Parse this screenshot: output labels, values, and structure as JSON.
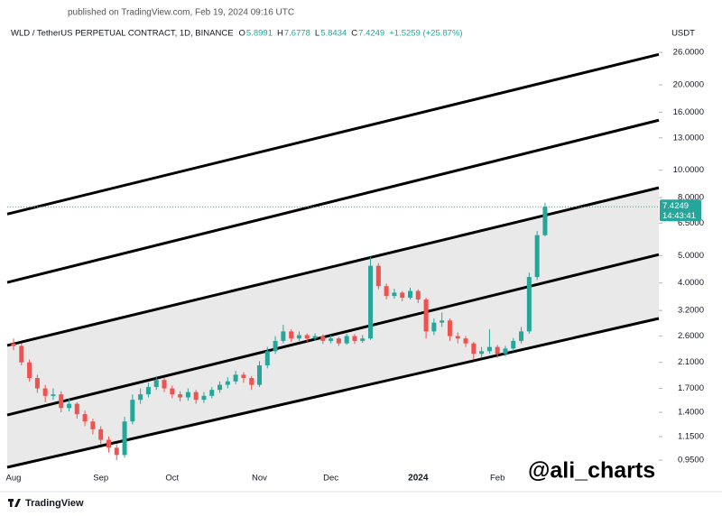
{
  "published": "published on TradingView.com, Feb 19, 2024 09:16 UTC",
  "brand": "TradingView",
  "watermark": "@ali_charts",
  "chart_data": {
    "type": "candlestick",
    "title": "WLD / TetherUS PERPETUAL CONTRACT, 1D, BINANCE",
    "ohlc_legend": [
      {
        "label": "O",
        "value": 5.8991
      },
      {
        "label": "H",
        "value": 7.6778
      },
      {
        "label": "L",
        "value": 5.8434
      },
      {
        "label": "C",
        "value": 7.4249
      }
    ],
    "change": "+1.5259 (+25.87%)",
    "y_axis_label": "USDT",
    "log_scale": true,
    "up_color": "#26a69a",
    "down_color": "#ef5350",
    "categories": [
      "Aug",
      null,
      null,
      null,
      null,
      null,
      null,
      null,
      null,
      null,
      null,
      "Sep",
      null,
      null,
      null,
      null,
      null,
      null,
      null,
      null,
      "Oct",
      null,
      null,
      null,
      null,
      null,
      null,
      null,
      null,
      null,
      null,
      "Nov",
      null,
      null,
      null,
      null,
      null,
      null,
      null,
      null,
      "Dec",
      null,
      null,
      null,
      null,
      null,
      null,
      null,
      null,
      null,
      null,
      "2024",
      null,
      null,
      null,
      null,
      null,
      null,
      null,
      null,
      null,
      "Feb",
      null,
      null,
      null,
      null,
      null,
      null
    ],
    "open": [
      2.45,
      2.4,
      2.1,
      1.85,
      1.7,
      1.6,
      1.62,
      1.45,
      1.5,
      1.38,
      1.3,
      1.22,
      1.12,
      1.05,
      0.99,
      1.3,
      1.55,
      1.62,
      1.72,
      1.82,
      1.7,
      1.62,
      1.58,
      1.65,
      1.55,
      1.6,
      1.68,
      1.75,
      1.8,
      1.9,
      1.85,
      1.75,
      2.05,
      2.3,
      2.5,
      2.7,
      2.55,
      2.62,
      2.55,
      2.6,
      2.5,
      2.55,
      2.45,
      2.6,
      2.5,
      2.55,
      4.6,
      3.9,
      3.6,
      3.7,
      3.55,
      3.75,
      3.5,
      2.7,
      2.9,
      2.95,
      2.6,
      2.55,
      2.45,
      2.25,
      2.3,
      2.38,
      2.25,
      2.35,
      2.5,
      2.7,
      4.2,
      5.8991
    ],
    "high": [
      2.55,
      2.45,
      2.15,
      1.9,
      1.75,
      1.7,
      1.66,
      1.56,
      1.52,
      1.42,
      1.33,
      1.25,
      1.15,
      1.08,
      1.35,
      1.62,
      1.7,
      1.78,
      1.88,
      1.85,
      1.74,
      1.66,
      1.7,
      1.68,
      1.65,
      1.72,
      1.8,
      1.86,
      1.96,
      1.94,
      1.88,
      2.12,
      2.38,
      2.6,
      2.85,
      2.75,
      2.7,
      2.66,
      2.66,
      2.64,
      2.62,
      2.58,
      2.65,
      2.64,
      2.62,
      4.95,
      4.7,
      3.98,
      3.82,
      3.75,
      3.85,
      3.8,
      3.55,
      3.0,
      3.15,
      3.0,
      2.68,
      2.6,
      2.48,
      2.38,
      2.75,
      2.42,
      2.4,
      2.56,
      2.8,
      4.35,
      6.1,
      7.6778
    ],
    "low": [
      2.32,
      2.05,
      1.8,
      1.64,
      1.52,
      1.55,
      1.4,
      1.41,
      1.33,
      1.25,
      1.17,
      1.08,
      1.01,
      0.95,
      0.97,
      1.27,
      1.5,
      1.58,
      1.68,
      1.65,
      1.57,
      1.53,
      1.54,
      1.5,
      1.51,
      1.57,
      1.64,
      1.7,
      1.76,
      1.78,
      1.68,
      1.72,
      2.0,
      2.25,
      2.45,
      2.48,
      2.5,
      2.48,
      2.5,
      2.44,
      2.45,
      2.4,
      2.42,
      2.44,
      2.46,
      2.52,
      3.8,
      3.5,
      3.52,
      3.45,
      3.5,
      3.4,
      2.55,
      2.62,
      2.8,
      2.5,
      2.45,
      2.38,
      2.15,
      2.18,
      2.25,
      2.18,
      2.2,
      2.3,
      2.45,
      2.65,
      4.1,
      5.8434
    ],
    "close": [
      2.4,
      2.1,
      1.85,
      1.7,
      1.6,
      1.62,
      1.45,
      1.5,
      1.38,
      1.3,
      1.22,
      1.12,
      1.05,
      0.99,
      1.3,
      1.55,
      1.62,
      1.72,
      1.82,
      1.7,
      1.62,
      1.58,
      1.65,
      1.55,
      1.6,
      1.68,
      1.75,
      1.8,
      1.9,
      1.85,
      1.75,
      2.05,
      2.3,
      2.5,
      2.7,
      2.55,
      2.62,
      2.55,
      2.6,
      2.5,
      2.55,
      2.45,
      2.6,
      2.5,
      2.55,
      4.6,
      3.9,
      3.6,
      3.7,
      3.55,
      3.75,
      3.5,
      2.7,
      2.9,
      2.95,
      2.6,
      2.55,
      2.45,
      2.25,
      2.3,
      2.38,
      2.25,
      2.35,
      2.5,
      2.7,
      4.2,
      5.9,
      7.4249
    ],
    "last_price": 7.4249,
    "countdown": "14:43:41",
    "channel": [
      {
        "start": 7.0,
        "end": 25.6
      },
      {
        "start": 4.02,
        "end": 15.0
      },
      {
        "start": 2.41,
        "end": 8.67
      },
      {
        "start": 1.37,
        "end": 5.04
      },
      {
        "start": 0.896,
        "end": 3.0
      }
    ],
    "ylim": [
      0.883,
      27.6
    ],
    "yticks": [
      {
        "value": 26,
        "label": "26.0000"
      },
      {
        "value": 20,
        "label": "20.0000"
      },
      {
        "value": 16,
        "label": "16.0000"
      },
      {
        "value": 13,
        "label": "13.0000"
      },
      {
        "value": 10,
        "label": "10.0000"
      },
      {
        "value": 8,
        "label": "8.0000"
      },
      {
        "value": 6.5,
        "label": "6.5000"
      },
      {
        "value": 5,
        "label": "5.0000"
      },
      {
        "value": 4,
        "label": "4.0000"
      },
      {
        "value": 3.2,
        "label": "3.2000"
      },
      {
        "value": 2.6,
        "label": "2.6000"
      },
      {
        "value": 2.1,
        "label": "2.1000"
      },
      {
        "value": 1.7,
        "label": "1.7000"
      },
      {
        "value": 1.4,
        "label": "1.4000"
      },
      {
        "value": 1.15,
        "label": "1.1500"
      },
      {
        "value": 0.95,
        "label": "0.9500"
      }
    ]
  }
}
